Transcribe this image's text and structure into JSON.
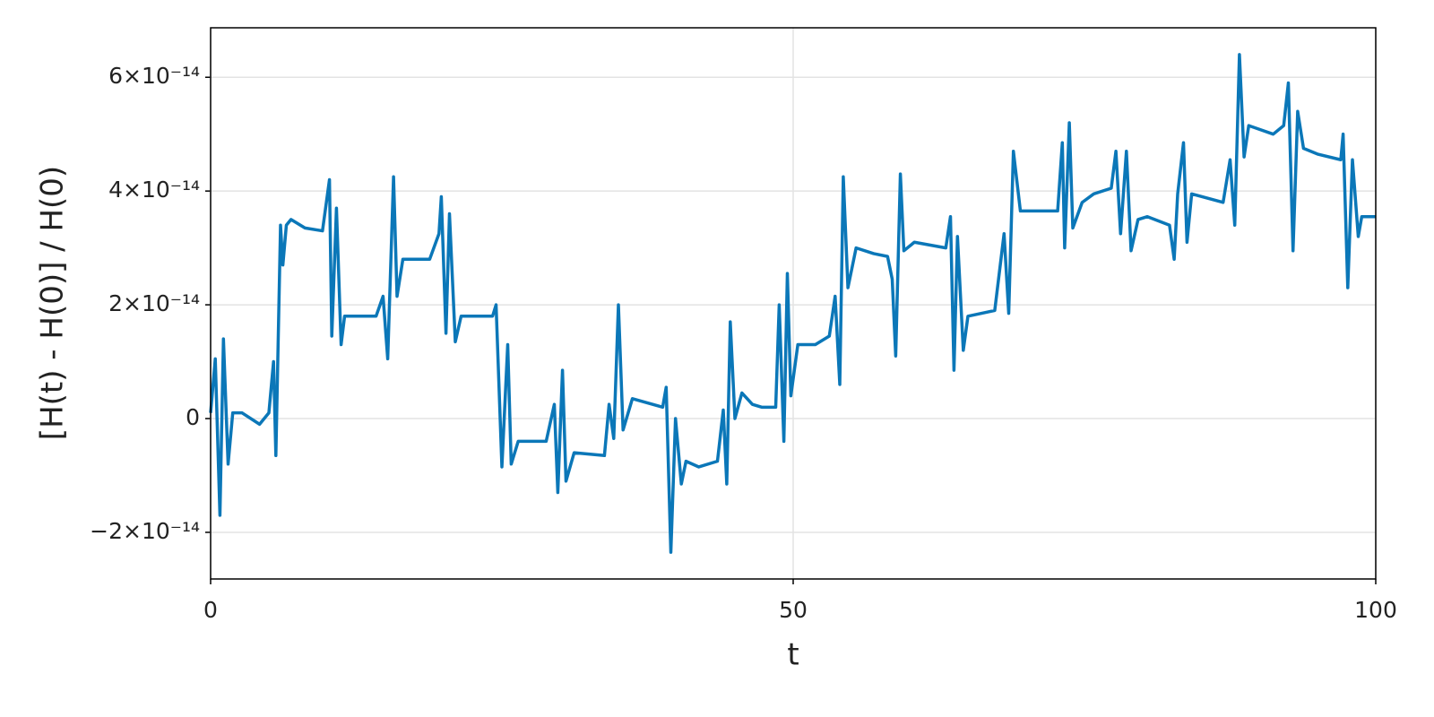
{
  "chart_data": {
    "type": "line",
    "x_label": "t",
    "y_label": "[H(t) - H(0)] / H(0)",
    "xlim": [
      0,
      100
    ],
    "xticks": [
      0,
      50,
      100
    ],
    "ylim": [
      -2.82e-14,
      6.87e-14
    ],
    "yticks": [
      {
        "value": -2e-14,
        "label": "−2×10⁻¹⁴"
      },
      0,
      {
        "value": 2e-14,
        "label": "2×10⁻¹⁴"
      },
      {
        "value": 4e-14,
        "label": "4×10⁻¹⁴"
      },
      {
        "value": 6e-14,
        "label": "6×10⁻¹⁴"
      }
    ],
    "grid": true,
    "x": [
      0,
      0.4,
      0.8,
      1.1,
      1.5,
      1.9,
      2.7,
      4.2,
      5,
      5.4,
      5.6,
      6,
      6.2,
      6.5,
      6.9,
      8.1,
      9.6,
      10.2,
      10.4,
      10.8,
      11.2,
      11.5,
      14.2,
      14.8,
      15.2,
      15.7,
      16,
      16.5,
      18.8,
      19.6,
      19.8,
      20.2,
      20.5,
      21,
      21.5,
      24.2,
      24.5,
      25,
      25.5,
      25.8,
      26.4,
      28.8,
      29.5,
      29.8,
      30.2,
      30.5,
      31.2,
      33.8,
      34.2,
      34.6,
      35,
      35.4,
      36.2,
      38.8,
      39.1,
      39.5,
      39.9,
      40.4,
      40.8,
      41.9,
      43.5,
      44,
      44.3,
      44.6,
      45,
      45.6,
      46.5,
      47.3,
      48.5,
      48.8,
      49.2,
      49.5,
      49.8,
      50.4,
      51.9,
      53.1,
      53.6,
      54,
      54.3,
      54.7,
      55.4,
      56.9,
      58.1,
      58.5,
      58.8,
      59.2,
      59.5,
      60.4,
      63.1,
      63.5,
      63.8,
      64.1,
      64.6,
      65,
      67.3,
      68.1,
      68.5,
      68.9,
      69.5,
      70.4,
      72.7,
      73.1,
      73.3,
      73.7,
      74,
      74.8,
      75.8,
      77.3,
      77.7,
      78.1,
      78.6,
      79,
      79.6,
      80.4,
      82.3,
      82.7,
      83,
      83.5,
      83.8,
      84.2,
      86.9,
      87.5,
      87.9,
      88.3,
      88.7,
      89.1,
      91.2,
      92.1,
      92.5,
      92.9,
      93.3,
      93.8,
      95,
      97,
      97.2,
      97.6,
      98,
      98.5,
      98.8,
      100
    ],
    "series": [
      {
        "color": "#0b77b8",
        "values": [
          1e-15,
          1.05e-14,
          -1.7e-14,
          1.4e-14,
          -8e-15,
          1e-15,
          1e-15,
          -1e-15,
          1e-15,
          1e-14,
          -6.5e-15,
          3.4e-14,
          2.7e-14,
          3.4e-14,
          3.5e-14,
          3.35e-14,
          3.3e-14,
          4.2e-14,
          1.45e-14,
          3.7e-14,
          1.3e-14,
          1.8e-14,
          1.8e-14,
          2.15e-14,
          1.05e-14,
          4.25e-14,
          2.15e-14,
          2.8e-14,
          2.8e-14,
          3.25e-14,
          3.9e-14,
          1.5e-14,
          3.6e-14,
          1.35e-14,
          1.8e-14,
          1.8e-14,
          2e-14,
          -8.5e-15,
          1.3e-14,
          -8e-15,
          -4e-15,
          -4e-15,
          2.5e-15,
          -1.3e-14,
          8.5e-15,
          -1.1e-14,
          -6e-15,
          -6.5e-15,
          2.5e-15,
          -3.5e-15,
          2e-14,
          -2e-15,
          3.5e-15,
          2e-15,
          5.5e-15,
          -2.35e-14,
          0,
          -1.15e-14,
          -7.5e-15,
          -8.5e-15,
          -7.5e-15,
          1.5e-15,
          -1.15e-14,
          1.7e-14,
          0,
          4.5e-15,
          2.5e-15,
          2e-15,
          2e-15,
          2e-14,
          -4e-15,
          2.55e-14,
          4e-15,
          1.3e-14,
          1.3e-14,
          1.45e-14,
          2.15e-14,
          6e-15,
          4.25e-14,
          2.3e-14,
          3e-14,
          2.9e-14,
          2.85e-14,
          2.45e-14,
          1.1e-14,
          4.3e-14,
          2.95e-14,
          3.1e-14,
          3e-14,
          3.55e-14,
          8.5e-15,
          3.2e-14,
          1.2e-14,
          1.8e-14,
          1.9e-14,
          3.25e-14,
          1.85e-14,
          4.7e-14,
          3.65e-14,
          3.65e-14,
          3.65e-14,
          4.85e-14,
          3e-14,
          5.2e-14,
          3.35e-14,
          3.8e-14,
          3.95e-14,
          4.05e-14,
          4.7e-14,
          3.25e-14,
          4.7e-14,
          2.95e-14,
          3.5e-14,
          3.55e-14,
          3.4e-14,
          2.8e-14,
          3.95e-14,
          4.85e-14,
          3.1e-14,
          3.95e-14,
          3.8e-14,
          4.55e-14,
          3.4e-14,
          6.4e-14,
          4.6e-14,
          5.15e-14,
          5e-14,
          5.15e-14,
          5.9e-14,
          2.95e-14,
          5.4e-14,
          4.75e-14,
          4.65e-14,
          4.55e-14,
          5e-14,
          2.3e-14,
          4.55e-14,
          3.2e-14,
          3.55e-14,
          3.55e-14
        ]
      }
    ]
  }
}
